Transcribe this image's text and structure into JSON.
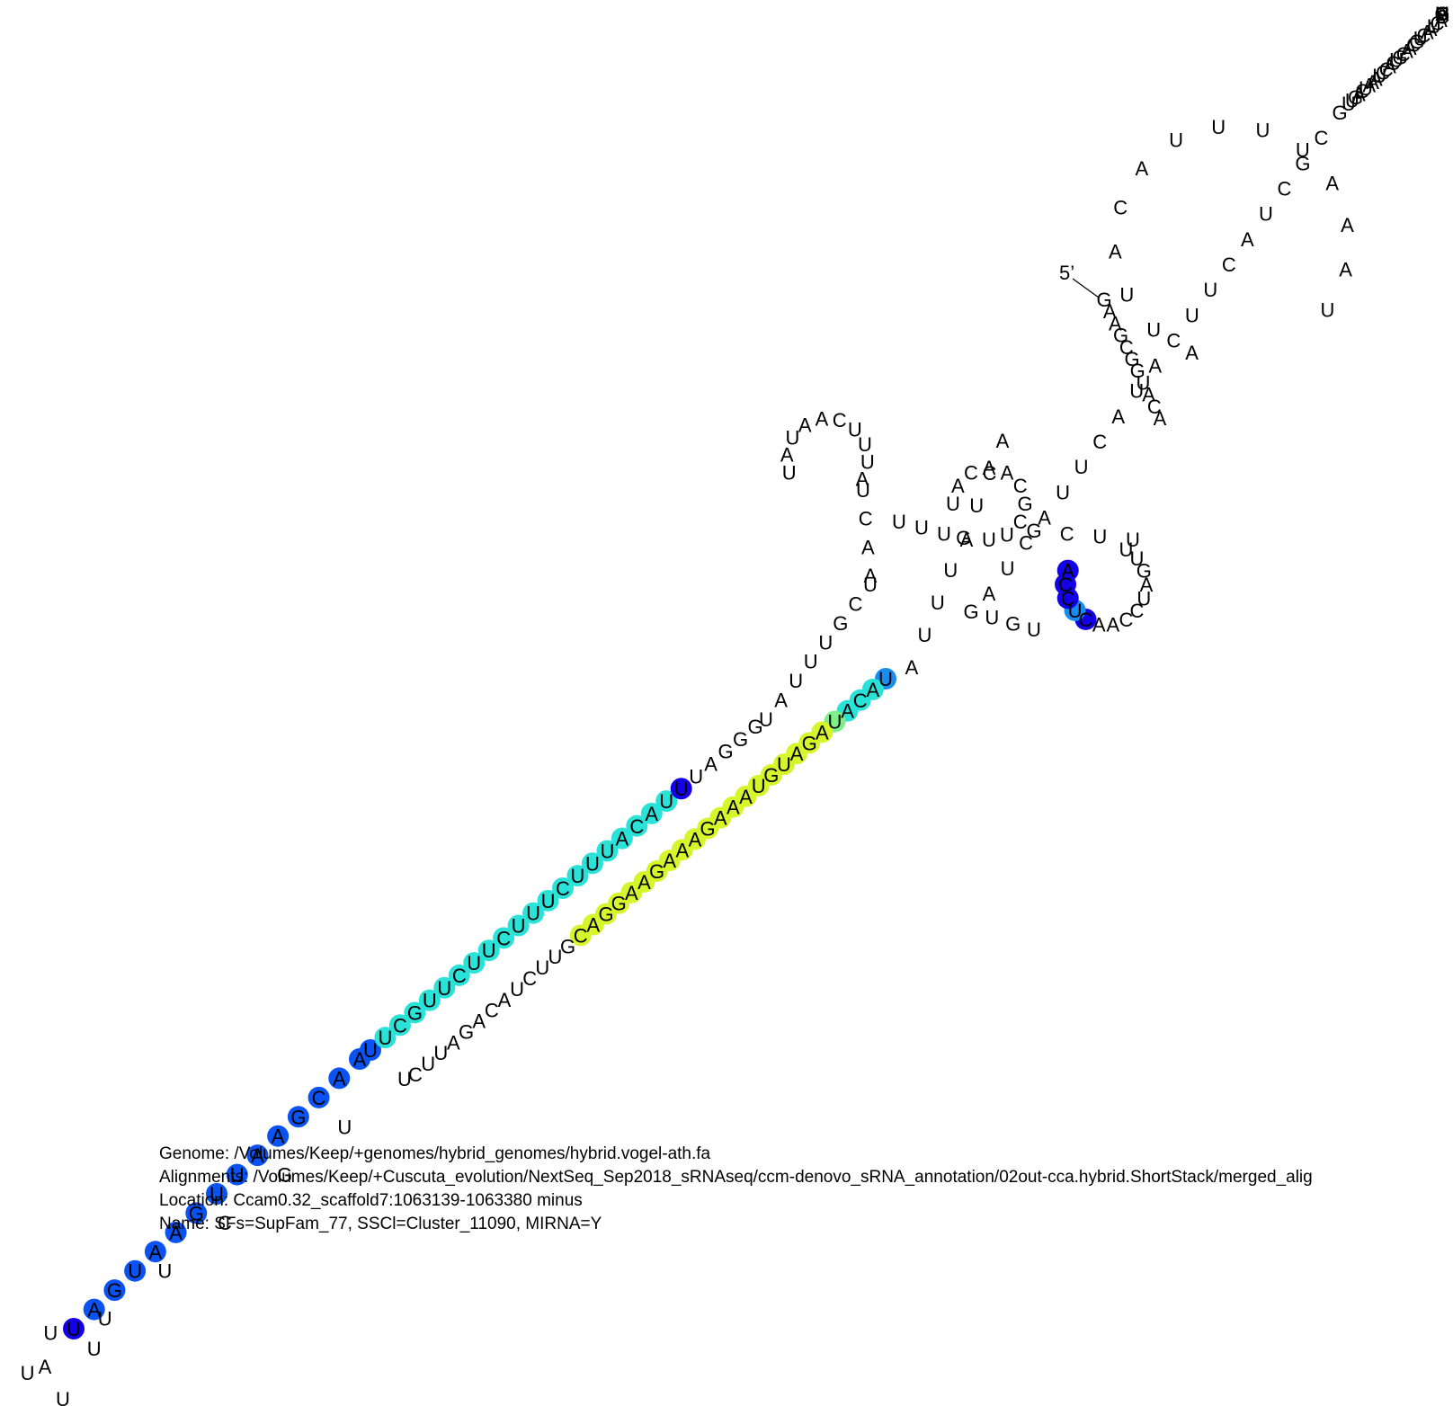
{
  "header": {
    "genome": "Genome: /Volumes/Keep/+genomes/hybrid_genomes/hybrid.vogel-ath.fa",
    "alignments": "Alignments: /Volumes/Keep/+Cuscuta_evolution/NextSeq_Sep2018_sRNAseq/ccm-denovo_sRNA_annotation/02out-cca.hybrid.ShortStack/merged_alig",
    "location": "Location: Ccam0.32_scaffold7:1063139-1063380 minus",
    "name": "Name: SFs=SupFam_77, SSCl=Cluster_11090, MIRNA=Y"
  },
  "structure": {
    "five_prime_label": "5’",
    "colors": {
      "dark_blue": "#1400e6",
      "blue": "#0a52f2",
      "mid_blue": "#1a8cf0",
      "cyan": "#2ae2d8",
      "green": "#7ef08a",
      "yellow": "#d6f52a"
    },
    "nucleotides": [
      [
        "G",
        "none"
      ],
      [
        "A",
        "none"
      ],
      [
        "A",
        "none"
      ],
      [
        "G",
        "none"
      ],
      [
        "C",
        "none"
      ],
      [
        "G",
        "none"
      ],
      [
        "G",
        "none"
      ],
      [
        "U",
        "none"
      ],
      [
        "A",
        "none"
      ],
      [
        "C",
        "none"
      ],
      [
        "A",
        "none"
      ],
      [
        "A",
        "none"
      ],
      [
        "U",
        "none"
      ],
      [
        "U",
        "none"
      ],
      [
        "A",
        "none"
      ],
      [
        "C",
        "none"
      ],
      [
        "A",
        "none"
      ],
      [
        "U",
        "none"
      ],
      [
        "U",
        "none"
      ],
      [
        "U",
        "none"
      ],
      [
        "U",
        "none"
      ],
      [
        "A",
        "none"
      ],
      [
        "A",
        "none"
      ],
      [
        "A",
        "none"
      ],
      [
        "U",
        "none"
      ],
      [
        "A",
        "none"
      ],
      [
        "C",
        "none"
      ],
      [
        "U",
        "none"
      ],
      [
        "G",
        "none"
      ],
      [
        "U",
        "none"
      ],
      [
        "U",
        "none"
      ],
      [
        "U",
        "none"
      ],
      [
        "A",
        "none"
      ],
      [
        "U",
        "mid_blue"
      ],
      [
        "A",
        "cyan"
      ],
      [
        "C",
        "cyan"
      ],
      [
        "A",
        "cyan"
      ],
      [
        "U",
        "green"
      ],
      [
        "A",
        "yellow"
      ],
      [
        "G",
        "yellow"
      ],
      [
        "A",
        "yellow"
      ],
      [
        "U",
        "yellow"
      ],
      [
        "G",
        "yellow"
      ],
      [
        "U",
        "yellow"
      ],
      [
        "A",
        "yellow"
      ],
      [
        "A",
        "yellow"
      ],
      [
        "A",
        "yellow"
      ],
      [
        "G",
        "yellow"
      ],
      [
        "A",
        "yellow"
      ],
      [
        "A",
        "yellow"
      ],
      [
        "A",
        "yellow"
      ],
      [
        "G",
        "yellow"
      ],
      [
        "A",
        "yellow"
      ],
      [
        "A",
        "yellow"
      ],
      [
        "G",
        "yellow"
      ],
      [
        "G",
        "yellow"
      ],
      [
        "A",
        "yellow"
      ],
      [
        "C",
        "yellow"
      ],
      [
        "G",
        "none"
      ],
      [
        "U",
        "none"
      ],
      [
        "U",
        "none"
      ],
      [
        "C",
        "none"
      ],
      [
        "U",
        "none"
      ],
      [
        "A",
        "none"
      ],
      [
        "C",
        "none"
      ],
      [
        "A",
        "none"
      ],
      [
        "G",
        "none"
      ],
      [
        "A",
        "none"
      ],
      [
        "U",
        "none"
      ],
      [
        "U",
        "none"
      ],
      [
        "C",
        "none"
      ],
      [
        "U",
        "none"
      ],
      [
        "U",
        "none"
      ],
      [
        "G",
        "none"
      ],
      [
        "C",
        "none"
      ],
      [
        "U",
        "none"
      ],
      [
        "U",
        "none"
      ],
      [
        "A",
        "none"
      ],
      [
        "U",
        "none"
      ],
      [
        "U",
        "none"
      ],
      [
        "U",
        "none"
      ],
      [
        "U",
        "none"
      ],
      [
        "U",
        "dark_blue"
      ],
      [
        "A",
        "blue"
      ],
      [
        "G",
        "blue"
      ],
      [
        "U",
        "blue"
      ],
      [
        "A",
        "blue"
      ],
      [
        "A",
        "blue"
      ],
      [
        "G",
        "blue"
      ],
      [
        "U",
        "blue"
      ],
      [
        "U",
        "blue"
      ],
      [
        "A",
        "blue"
      ],
      [
        "A",
        "blue"
      ],
      [
        "G",
        "blue"
      ],
      [
        "C",
        "blue"
      ],
      [
        "A",
        "blue"
      ],
      [
        "A",
        "blue"
      ],
      [
        "U",
        "blue"
      ],
      [
        "U",
        "cyan"
      ],
      [
        "C",
        "cyan"
      ],
      [
        "G",
        "cyan"
      ],
      [
        "U",
        "cyan"
      ],
      [
        "U",
        "cyan"
      ],
      [
        "C",
        "cyan"
      ],
      [
        "U",
        "cyan"
      ],
      [
        "U",
        "cyan"
      ],
      [
        "C",
        "cyan"
      ],
      [
        "U",
        "cyan"
      ],
      [
        "U",
        "cyan"
      ],
      [
        "U",
        "cyan"
      ],
      [
        "C",
        "cyan"
      ],
      [
        "U",
        "cyan"
      ],
      [
        "U",
        "cyan"
      ],
      [
        "U",
        "cyan"
      ],
      [
        "A",
        "cyan"
      ],
      [
        "C",
        "cyan"
      ],
      [
        "A",
        "cyan"
      ],
      [
        "U",
        "cyan"
      ],
      [
        "U",
        "dark_blue"
      ],
      [
        "U",
        "none"
      ],
      [
        "A",
        "none"
      ],
      [
        "G",
        "none"
      ],
      [
        "G",
        "none"
      ],
      [
        "G",
        "none"
      ],
      [
        "U",
        "none"
      ],
      [
        "A",
        "none"
      ],
      [
        "U",
        "none"
      ],
      [
        "U",
        "none"
      ],
      [
        "U",
        "none"
      ],
      [
        "G",
        "none"
      ],
      [
        "C",
        "none"
      ],
      [
        "U",
        "none"
      ],
      [
        "A",
        "none"
      ],
      [
        "A",
        "none"
      ],
      [
        "C",
        "none"
      ],
      [
        "U",
        "none"
      ],
      [
        "A",
        "none"
      ],
      [
        "U",
        "none"
      ],
      [
        "U",
        "none"
      ],
      [
        "U",
        "none"
      ],
      [
        "C",
        "none"
      ],
      [
        "A",
        "none"
      ],
      [
        "A",
        "none"
      ],
      [
        "U",
        "none"
      ],
      [
        "A",
        "none"
      ],
      [
        "U",
        "none"
      ],
      [
        "U",
        "none"
      ],
      [
        "U",
        "none"
      ],
      [
        "U",
        "none"
      ],
      [
        "A",
        "none"
      ],
      [
        "U",
        "none"
      ],
      [
        "A",
        "none"
      ],
      [
        "C",
        "none"
      ],
      [
        "A",
        "none"
      ],
      [
        "A",
        "none"
      ],
      [
        "C",
        "none"
      ],
      [
        "G",
        "none"
      ],
      [
        "C",
        "none"
      ],
      [
        "U",
        "none"
      ],
      [
        "U",
        "none"
      ],
      [
        "G",
        "none"
      ],
      [
        "C",
        "none"
      ],
      [
        "U",
        "none"
      ],
      [
        "U",
        "none"
      ],
      [
        "U",
        "none"
      ],
      [
        "U",
        "none"
      ],
      [
        "G",
        "none"
      ],
      [
        "A",
        "none"
      ],
      [
        "U",
        "none"
      ],
      [
        "C",
        "none"
      ],
      [
        "C",
        "none"
      ],
      [
        "A",
        "none"
      ],
      [
        "A",
        "none"
      ],
      [
        "C",
        "dark_blue"
      ],
      [
        "U",
        "mid_blue"
      ],
      [
        "C",
        "dark_blue"
      ],
      [
        "C",
        "dark_blue"
      ],
      [
        "A",
        "dark_blue"
      ],
      [
        "U",
        "none"
      ],
      [
        "G",
        "none"
      ],
      [
        "U",
        "none"
      ],
      [
        "G",
        "none"
      ],
      [
        "A",
        "none"
      ],
      [
        "U",
        "none"
      ],
      [
        "C",
        "none"
      ],
      [
        "A",
        "none"
      ],
      [
        "U",
        "none"
      ],
      [
        "U",
        "none"
      ],
      [
        "C",
        "none"
      ],
      [
        "A",
        "none"
      ],
      [
        "U",
        "none"
      ],
      [
        "A",
        "none"
      ],
      [
        "C",
        "none"
      ],
      [
        "U",
        "none"
      ],
      [
        "U",
        "none"
      ],
      [
        "C",
        "none"
      ],
      [
        "A",
        "none"
      ],
      [
        "U",
        "none"
      ],
      [
        "C",
        "none"
      ],
      [
        "G",
        "none"
      ],
      [
        "C",
        "none"
      ],
      [
        "G",
        "none"
      ],
      [
        "U",
        "none"
      ],
      [
        "U",
        "none"
      ],
      [
        "G",
        "none"
      ],
      [
        "A",
        "none"
      ],
      [
        "C",
        "none"
      ],
      [
        "U",
        "none"
      ],
      [
        "A",
        "none"
      ],
      [
        "A",
        "none"
      ],
      [
        "A",
        "none"
      ],
      [
        "U",
        "none"
      ],
      [
        "C",
        "none"
      ],
      [
        "C",
        "none"
      ],
      [
        "A",
        "none"
      ],
      [
        "C",
        "none"
      ],
      [
        "U",
        "none"
      ],
      [
        "G",
        "none"
      ],
      [
        "C",
        "none"
      ],
      [
        "A",
        "none"
      ],
      [
        "A",
        "none"
      ],
      [
        "C",
        "none"
      ],
      [
        "G",
        "none"
      ],
      [
        "U",
        "none"
      ],
      [
        "C",
        "none"
      ],
      [
        "A",
        "none"
      ],
      [
        "A",
        "none"
      ],
      [
        "U",
        "none"
      ],
      [
        "C",
        "none"
      ],
      [
        "A",
        "none"
      ],
      [
        "C",
        "none"
      ],
      [
        "U",
        "none"
      ],
      [
        "G",
        "none"
      ],
      [
        "A",
        "none"
      ],
      [
        "C",
        "none"
      ],
      [
        "G",
        "none"
      ],
      [
        "A",
        "none"
      ],
      [
        "U",
        "none"
      ],
      [
        "C",
        "none"
      ],
      [
        "A",
        "none"
      ],
      [
        "A",
        "none"
      ],
      [
        "U",
        "none"
      ],
      [
        "C",
        "none"
      ],
      [
        "G",
        "none"
      ]
    ]
  }
}
